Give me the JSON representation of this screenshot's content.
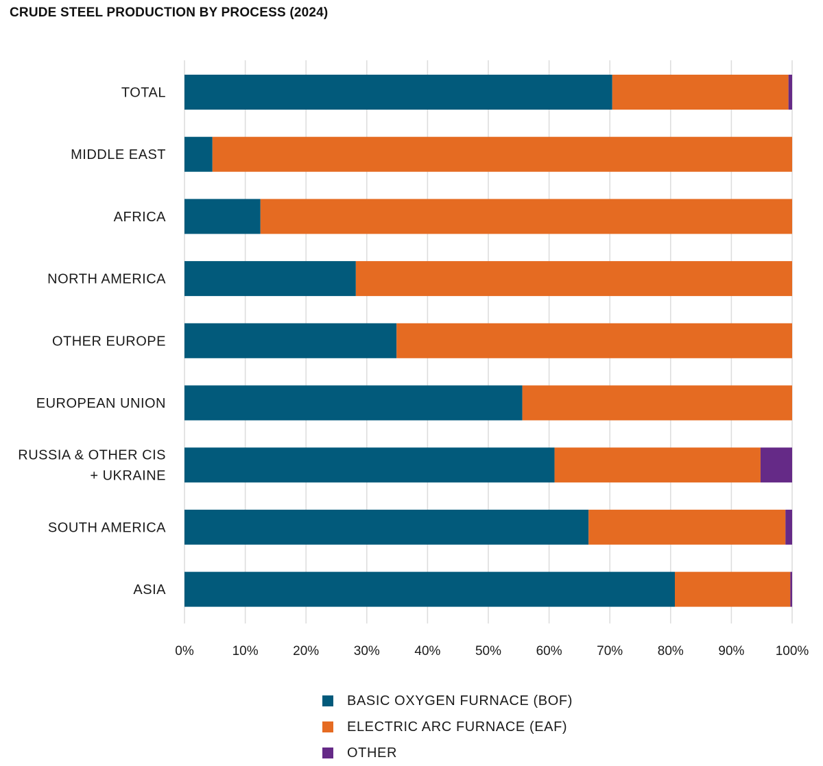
{
  "chart_data": {
    "type": "bar",
    "orientation": "horizontal",
    "stacked": true,
    "title": "CRUDE STEEL PRODUCTION BY PROCESS (2024)",
    "xlabel": "",
    "ylabel": "",
    "xlim": [
      0,
      100
    ],
    "x_ticks": [
      "0%",
      "10%",
      "20%",
      "30%",
      "40%",
      "50%",
      "60%",
      "70%",
      "80%",
      "90%",
      "100%"
    ],
    "grid": "vertical",
    "legend_position": "bottom",
    "categories": [
      [
        "TOTAL"
      ],
      [
        "MIDDLE EAST"
      ],
      [
        "AFRICA"
      ],
      [
        "NORTH AMERICA"
      ],
      [
        "OTHER EUROPE"
      ],
      [
        "EUROPEAN UNION"
      ],
      [
        "RUSSIA & OTHER CIS",
        "+ UKRAINE"
      ],
      [
        "SOUTH AMERICA"
      ],
      [
        "ASIA"
      ]
    ],
    "series": [
      {
        "name": "BASIC OXYGEN FURNACE (BOF)",
        "color": "#025a7b",
        "values": [
          70.4,
          4.6,
          12.5,
          28.2,
          34.9,
          55.6,
          60.9,
          66.5,
          80.7
        ]
      },
      {
        "name": "ELECTRIC ARC FURNACE (EAF)",
        "color": "#e56b22",
        "values": [
          29.0,
          95.4,
          87.5,
          71.8,
          65.1,
          44.4,
          33.9,
          32.4,
          19.0
        ]
      },
      {
        "name": "OTHER",
        "color": "#652a87",
        "values": [
          0.6,
          0.0,
          0.0,
          0.0,
          0.0,
          0.0,
          5.2,
          1.1,
          0.3
        ]
      }
    ]
  }
}
